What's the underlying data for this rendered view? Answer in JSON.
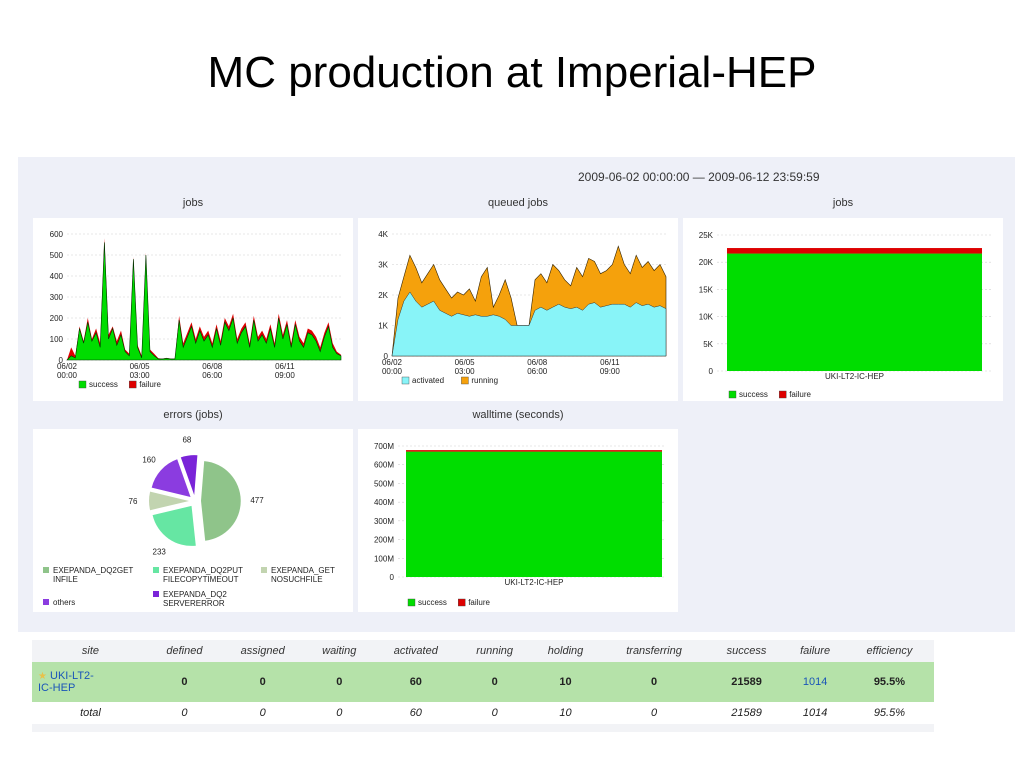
{
  "slide": {
    "title": "MC production at Imperial-HEP"
  },
  "dashboard": {
    "date_range": "2009-06-02 00:00:00 — 2009-06-12 23:59:59"
  },
  "colors": {
    "success": "#00dd00",
    "failure": "#dd0000",
    "activated": "#88f4f8",
    "running": "#f5a10c",
    "pie": [
      "#8fc48a",
      "#66e6a3",
      "#c2d4b0",
      "#8b3ce0",
      "#7a24d8"
    ]
  },
  "chart_data": [
    {
      "type": "area",
      "title": "jobs",
      "x_ticks": [
        "06/02\n00:00",
        "06/05\n03:00",
        "06/08\n06:00",
        "06/11\n09:00"
      ],
      "y_ticks": [
        "0",
        "100",
        "200",
        "300",
        "400",
        "500",
        "600"
      ],
      "ylim": [
        0,
        600
      ],
      "legend": [
        "success",
        "failure"
      ],
      "series": [
        {
          "name": "success",
          "values": [
            0,
            20,
            10,
            150,
            80,
            180,
            90,
            130,
            60,
            560,
            100,
            150,
            70,
            120,
            40,
            20,
            480,
            60,
            10,
            500,
            40,
            20,
            5,
            5,
            8,
            5,
            5,
            190,
            60,
            110,
            160,
            80,
            140,
            90,
            120,
            60,
            150,
            70,
            180,
            140,
            200,
            80,
            130,
            160,
            60,
            190,
            90,
            120,
            80,
            150,
            60,
            200,
            100,
            170,
            60,
            170,
            90,
            60,
            130,
            120,
            90,
            40,
            110,
            160,
            60,
            30,
            20
          ]
        },
        {
          "name": "failure",
          "values": [
            0,
            60,
            20,
            160,
            90,
            200,
            100,
            150,
            80,
            580,
            120,
            160,
            90,
            140,
            50,
            30,
            490,
            70,
            20,
            510,
            50,
            30,
            8,
            6,
            10,
            6,
            6,
            210,
            80,
            130,
            180,
            100,
            160,
            110,
            140,
            80,
            170,
            90,
            200,
            160,
            220,
            100,
            150,
            180,
            80,
            210,
            110,
            140,
            100,
            170,
            80,
            220,
            120,
            190,
            80,
            190,
            110,
            80,
            150,
            140,
            110,
            60,
            130,
            180,
            80,
            40,
            25
          ]
        }
      ]
    },
    {
      "type": "area",
      "title": "queued jobs",
      "x_ticks": [
        "06/02\n00:00",
        "06/05\n03:00",
        "06/08\n06:00",
        "06/11\n09:00"
      ],
      "y_ticks": [
        "0",
        "1K",
        "2K",
        "3K",
        "4K"
      ],
      "ylim": [
        0,
        4000
      ],
      "legend": [
        "activated",
        "running"
      ],
      "series": [
        {
          "name": "activated",
          "values": [
            0,
            1200,
            1800,
            2100,
            1800,
            1600,
            1700,
            1800,
            1500,
            1400,
            1300,
            1400,
            1350,
            1300,
            1350,
            1300,
            1300,
            1350,
            1300,
            1200,
            1000,
            1000,
            1000,
            1000,
            1500,
            1600,
            1500,
            1600,
            1700,
            1600,
            1550,
            1600,
            1500,
            1700,
            1750,
            1600,
            1650,
            1700,
            1700,
            1700,
            1600,
            1750,
            1650,
            1700,
            1600,
            1650,
            1550
          ]
        },
        {
          "name": "running",
          "values": [
            0,
            1900,
            2600,
            3300,
            2900,
            2400,
            2700,
            3000,
            2500,
            2200,
            1900,
            2100,
            2000,
            2200,
            1800,
            2600,
            2900,
            1600,
            2000,
            2500,
            1900,
            1000,
            1000,
            1000,
            2500,
            2700,
            2400,
            3000,
            2800,
            2500,
            2300,
            2900,
            2600,
            3200,
            3100,
            2700,
            2800,
            3000,
            3600,
            3000,
            2700,
            3300,
            2900,
            3100,
            2800,
            3000,
            2600
          ]
        }
      ]
    },
    {
      "type": "bar",
      "title": "jobs",
      "categories": [
        "UKI-LT2-IC-HEP"
      ],
      "y_ticks": [
        "0",
        "5K",
        "10K",
        "15K",
        "20K",
        "25K"
      ],
      "ylim": [
        0,
        25000
      ],
      "legend": [
        "success",
        "failure"
      ],
      "series": [
        {
          "name": "success",
          "values": [
            21589
          ]
        },
        {
          "name": "failure",
          "values": [
            1014
          ]
        }
      ]
    },
    {
      "type": "pie",
      "title": "errors (jobs)",
      "labels": [
        "EXEPANDA_DQ2GET INFILE",
        "EXEPANDA_DQ2PUT FILECOPYTIMEOUT",
        "EXEPANDA_GET NOSUCHFILE",
        "EXEPANDA_DQ2 SERVERERROR",
        "others"
      ],
      "values": [
        477,
        233,
        76,
        160,
        68
      ],
      "legend": [
        [
          "EXEPANDA_DQ2GET",
          "INFILE"
        ],
        [
          "EXEPANDA_DQ2PUT",
          "FILECOPYTIMEOUT"
        ],
        [
          "EXEPANDA_GET",
          "NOSUCHFILE"
        ],
        [
          "EXEPANDA_DQ2",
          "SERVERERROR"
        ],
        [
          "others"
        ]
      ]
    },
    {
      "type": "bar",
      "title": "walltime (seconds)",
      "categories": [
        "UKI-LT2-IC-HEP"
      ],
      "y_ticks": [
        "0",
        "100M",
        "200M",
        "300M",
        "400M",
        "500M",
        "600M",
        "700M"
      ],
      "ylim": [
        0,
        700000000
      ],
      "legend": [
        "success",
        "failure"
      ],
      "series": [
        {
          "name": "success",
          "values": [
            670000000
          ]
        },
        {
          "name": "failure",
          "values": [
            8000000
          ]
        }
      ]
    }
  ],
  "table": {
    "headers": [
      "site",
      "defined",
      "assigned",
      "waiting",
      "activated",
      "running",
      "holding",
      "transferring",
      "success",
      "failure",
      "efficiency"
    ],
    "site_row": {
      "site_line1": "UKI-LT2-",
      "site_line2": "IC-HEP",
      "values": [
        "0",
        "0",
        "0",
        "60",
        "0",
        "10",
        "0",
        "21589",
        "1014",
        "95.5%"
      ]
    },
    "total_row": {
      "label": "total",
      "values": [
        "0",
        "0",
        "0",
        "60",
        "0",
        "10",
        "0",
        "21589",
        "1014",
        "95.5%"
      ]
    }
  }
}
